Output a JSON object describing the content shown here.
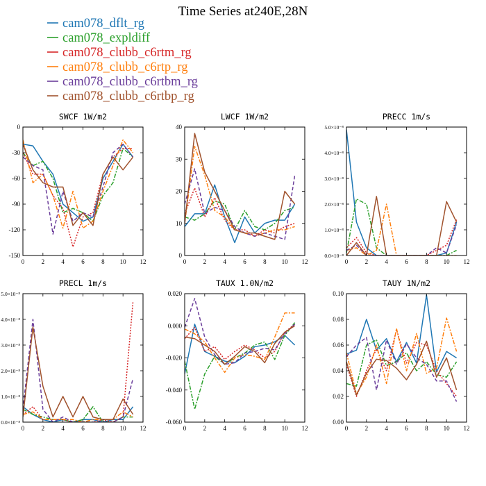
{
  "figure": {
    "title": "Time Series at240E,28N"
  },
  "legend": [
    {
      "name": "cam078_dflt_rg",
      "color": "#1f77b4",
      "dash": "solid"
    },
    {
      "name": "cam078_expldiff",
      "color": "#2ca02c",
      "dash": "dashdot"
    },
    {
      "name": "cam078_clubb_c6rtm_rg",
      "color": "#d62728",
      "dash": "dot"
    },
    {
      "name": "cam078_clubb_c6rtp_rg",
      "color": "#ff7f0e",
      "dash": "dashdot"
    },
    {
      "name": "cam078_clubb_c6rtbm_rg",
      "color": "#6a3d9a",
      "dash": "dash"
    },
    {
      "name": "cam078_clubb_c6rtbp_rg",
      "color": "#a0522d",
      "dash": "solid"
    }
  ],
  "chart_data": [
    {
      "type": "line",
      "title": "SWCF  1W/m2",
      "x": [
        0,
        1,
        2,
        3,
        4,
        5,
        6,
        7,
        8,
        9,
        10,
        11
      ],
      "xlim": [
        0,
        12
      ],
      "xticks": [
        0,
        2,
        4,
        6,
        8,
        10,
        12
      ],
      "ylim": [
        -150,
        0
      ],
      "yticks": [
        0,
        -30,
        -60,
        -90,
        -120,
        -150
      ],
      "ytick_labels": [
        "0",
        "-30",
        "-60",
        "-90",
        "-120",
        "-150"
      ],
      "series": [
        {
          "name": "cam078_dflt_rg",
          "values": [
            -20,
            -22,
            -40,
            -55,
            -90,
            -100,
            -110,
            -105,
            -60,
            -40,
            -20,
            -35
          ]
        },
        {
          "name": "cam078_expldiff",
          "values": [
            -30,
            -45,
            -40,
            -60,
            -100,
            -95,
            -100,
            -110,
            -80,
            -65,
            -25,
            -35
          ]
        },
        {
          "name": "cam078_clubb_c6rtm_rg",
          "values": [
            -30,
            -55,
            -55,
            -80,
            -95,
            -140,
            -105,
            -100,
            -55,
            -35,
            -25,
            -25
          ]
        },
        {
          "name": "cam078_clubb_c6rtp_rg",
          "values": [
            -15,
            -65,
            -55,
            -80,
            -118,
            -75,
            -118,
            -110,
            -75,
            -45,
            -15,
            -30
          ]
        },
        {
          "name": "cam078_clubb_c6rtbm_rg",
          "values": [
            -35,
            -45,
            -50,
            -125,
            -75,
            -110,
            -100,
            -105,
            -70,
            -30,
            -20,
            -35
          ]
        },
        {
          "name": "cam078_clubb_c6rtbp_rg",
          "values": [
            -20,
            -50,
            -65,
            -70,
            -70,
            -115,
            -100,
            -115,
            -55,
            -35,
            -50,
            -35
          ]
        }
      ]
    },
    {
      "type": "line",
      "title": "LWCF  1W/m2",
      "x": [
        0,
        1,
        2,
        3,
        4,
        5,
        6,
        7,
        8,
        9,
        10,
        11
      ],
      "xlim": [
        0,
        12
      ],
      "xticks": [
        0,
        2,
        4,
        6,
        8,
        10,
        12
      ],
      "ylim": [
        0,
        40
      ],
      "yticks": [
        0,
        10,
        20,
        30,
        40
      ],
      "ytick_labels": [
        "0",
        "10",
        "20",
        "30",
        "40"
      ],
      "series": [
        {
          "name": "cam078_dflt_rg",
          "values": [
            9,
            13,
            13,
            22,
            12,
            4,
            12,
            7,
            10,
            11,
            11,
            16
          ]
        },
        {
          "name": "cam078_expldiff",
          "values": [
            12,
            11,
            13,
            17,
            16,
            8,
            14,
            9,
            8,
            10,
            14,
            15
          ]
        },
        {
          "name": "cam078_clubb_c6rtm_rg",
          "values": [
            13,
            21,
            12,
            18,
            11,
            8,
            8,
            6,
            8,
            7,
            9,
            10
          ]
        },
        {
          "name": "cam078_clubb_c6rtp_rg",
          "values": [
            10,
            34,
            25,
            14,
            12,
            8,
            7,
            6,
            7,
            8,
            8,
            9
          ]
        },
        {
          "name": "cam078_clubb_c6rtbm_rg",
          "values": [
            16,
            27,
            13,
            15,
            14,
            9,
            7,
            6,
            7,
            6,
            5,
            25
          ]
        },
        {
          "name": "cam078_clubb_c6rtbp_rg",
          "values": [
            10,
            38,
            26,
            20,
            14,
            8,
            7,
            7,
            6,
            5,
            20,
            16
          ]
        }
      ]
    },
    {
      "type": "line",
      "title": "PRECC  1m/s",
      "x": [
        0,
        1,
        2,
        3,
        4,
        5,
        6,
        7,
        8,
        9,
        10,
        11
      ],
      "xlim": [
        0,
        12
      ],
      "xticks": [
        0,
        2,
        4,
        6,
        8,
        10,
        12
      ],
      "ylim": [
        0,
        5.0
      ],
      "yticks": [
        0,
        1,
        2,
        3,
        4,
        5
      ],
      "ytick_labels": [
        "0.0×10⁻⁸",
        "1.0×10⁻⁸",
        "2.0×10⁻⁸",
        "3.0×10⁻⁸",
        "4.0×10⁻⁸",
        "5.0×10⁻⁸"
      ],
      "series": [
        {
          "name": "cam078_dflt_rg",
          "values": [
            4.9,
            1.3,
            0.3,
            0.0,
            0.0,
            0.0,
            0.0,
            0.0,
            0.0,
            0.0,
            0.1,
            1.3
          ]
        },
        {
          "name": "cam078_expldiff",
          "values": [
            0.1,
            2.2,
            2.0,
            0.3,
            0.0,
            0.0,
            0.0,
            0.0,
            0.0,
            0.0,
            0.0,
            0.2
          ]
        },
        {
          "name": "cam078_clubb_c6rtm_rg",
          "values": [
            0.3,
            0.7,
            0.1,
            0.0,
            0.0,
            0.0,
            0.0,
            0.0,
            0.0,
            0.2,
            0.4,
            1.4
          ]
        },
        {
          "name": "cam078_clubb_c6rtp_rg",
          "values": [
            0.2,
            0.3,
            0.0,
            0.2,
            2.0,
            0.0,
            0.0,
            0.0,
            0.0,
            0.0,
            0.0,
            0.0
          ]
        },
        {
          "name": "cam078_clubb_c6rtbm_rg",
          "values": [
            0.2,
            0.4,
            0.0,
            0.0,
            0.0,
            0.0,
            0.0,
            0.0,
            0.0,
            0.3,
            0.1,
            1.2
          ]
        },
        {
          "name": "cam078_clubb_c6rtbp_rg",
          "values": [
            0.0,
            0.5,
            0.0,
            2.3,
            0.0,
            0.0,
            0.0,
            0.0,
            0.0,
            0.0,
            2.1,
            1.3
          ]
        }
      ]
    },
    {
      "type": "line",
      "title": "PRECL  1m/s",
      "x": [
        0,
        1,
        2,
        3,
        4,
        5,
        6,
        7,
        8,
        9,
        10,
        11
      ],
      "xlim": [
        0,
        12
      ],
      "xticks": [
        0,
        2,
        4,
        6,
        8,
        10,
        12
      ],
      "ylim": [
        0,
        5.0
      ],
      "yticks": [
        0,
        1,
        2,
        3,
        4,
        5
      ],
      "ytick_labels": [
        "0.0×10⁻⁸",
        "1.0×10⁻⁸",
        "2.0×10⁻⁸",
        "3.0×10⁻⁸",
        "4.0×10⁻⁸",
        "5.0×10⁻⁸"
      ],
      "series": [
        {
          "name": "cam078_dflt_rg",
          "values": [
            0.6,
            0.3,
            0.1,
            0.0,
            0.1,
            0.0,
            0.1,
            0.1,
            0.0,
            0.1,
            0.1,
            0.6
          ]
        },
        {
          "name": "cam078_expldiff",
          "values": [
            0.5,
            0.3,
            0.2,
            0.1,
            0.1,
            0.0,
            0.1,
            0.6,
            0.0,
            0.0,
            0.2,
            0.2
          ]
        },
        {
          "name": "cam078_clubb_c6rtm_rg",
          "values": [
            0.3,
            0.6,
            0.1,
            0.1,
            0.1,
            0.0,
            0.0,
            0.0,
            0.1,
            0.0,
            0.2,
            4.7
          ]
        },
        {
          "name": "cam078_clubb_c6rtp_rg",
          "values": [
            0.3,
            0.4,
            0.1,
            0.1,
            0.1,
            0.1,
            0.0,
            0.1,
            0.1,
            0.1,
            0.4,
            0.2
          ]
        },
        {
          "name": "cam078_clubb_c6rtbm_rg",
          "values": [
            0.5,
            4.0,
            0.5,
            0.0,
            0.2,
            0.0,
            0.0,
            0.0,
            0.0,
            0.0,
            0.2,
            1.7
          ]
        },
        {
          "name": "cam078_clubb_c6rtbp_rg",
          "values": [
            0.2,
            3.7,
            1.4,
            0.2,
            1.0,
            0.2,
            1.0,
            0.2,
            0.1,
            0.1,
            0.9,
            0.3
          ]
        }
      ]
    },
    {
      "type": "line",
      "title": "TAUX  1.0N/m2",
      "x": [
        0,
        1,
        2,
        3,
        4,
        5,
        6,
        7,
        8,
        9,
        10,
        11
      ],
      "xlim": [
        0,
        12
      ],
      "xticks": [
        0,
        2,
        4,
        6,
        8,
        10,
        12
      ],
      "ylim": [
        -0.06,
        0.02
      ],
      "yticks": [
        -0.06,
        -0.04,
        -0.02,
        0.0,
        0.02
      ],
      "ytick_labels": [
        "-0.060",
        "-0.040",
        "-0.020",
        "0.000",
        "0.020"
      ],
      "series": [
        {
          "name": "cam078_dflt_rg",
          "values": [
            -0.03,
            0.001,
            -0.016,
            -0.019,
            -0.022,
            -0.023,
            -0.019,
            -0.013,
            -0.012,
            -0.01,
            -0.006,
            -0.012
          ]
        },
        {
          "name": "cam078_expldiff",
          "values": [
            -0.022,
            -0.052,
            -0.03,
            -0.019,
            -0.024,
            -0.02,
            -0.017,
            -0.012,
            -0.01,
            -0.021,
            -0.006,
            0.002
          ]
        },
        {
          "name": "cam078_clubb_c6rtm_rg",
          "values": [
            -0.008,
            -0.001,
            -0.016,
            -0.013,
            -0.021,
            -0.016,
            -0.012,
            -0.015,
            -0.02,
            -0.016,
            -0.004,
            0.001
          ]
        },
        {
          "name": "cam078_clubb_c6rtp_rg",
          "values": [
            -0.002,
            -0.005,
            -0.01,
            -0.02,
            -0.029,
            -0.02,
            -0.018,
            -0.019,
            -0.021,
            -0.007,
            0.008,
            0.008
          ]
        },
        {
          "name": "cam078_clubb_c6rtbm_rg",
          "values": [
            -0.001,
            0.017,
            -0.007,
            -0.018,
            -0.024,
            -0.023,
            -0.017,
            -0.016,
            -0.014,
            -0.015,
            -0.005,
            0.001
          ]
        },
        {
          "name": "cam078_clubb_c6rtbp_rg",
          "values": [
            -0.007,
            -0.008,
            -0.012,
            -0.016,
            -0.024,
            -0.019,
            -0.013,
            -0.016,
            -0.023,
            -0.011,
            -0.004,
            0.0
          ]
        }
      ]
    },
    {
      "type": "line",
      "title": "TAUY  1N/m2",
      "x": [
        0,
        1,
        2,
        3,
        4,
        5,
        6,
        7,
        8,
        9,
        10,
        11
      ],
      "xlim": [
        0,
        12
      ],
      "xticks": [
        0,
        2,
        4,
        6,
        8,
        10,
        12
      ],
      "ylim": [
        0.0,
        0.1
      ],
      "yticks": [
        0.0,
        0.02,
        0.04,
        0.06,
        0.08,
        0.1
      ],
      "ytick_labels": [
        "0.00",
        "0.02",
        "0.04",
        "0.06",
        "0.08",
        "0.10"
      ],
      "series": [
        {
          "name": "cam078_dflt_rg",
          "values": [
            0.053,
            0.056,
            0.08,
            0.056,
            0.065,
            0.047,
            0.062,
            0.046,
            0.099,
            0.039,
            0.055,
            0.05
          ]
        },
        {
          "name": "cam078_expldiff",
          "values": [
            0.03,
            0.028,
            0.06,
            0.064,
            0.044,
            0.047,
            0.054,
            0.04,
            0.047,
            0.037,
            0.035,
            0.047
          ]
        },
        {
          "name": "cam078_clubb_c6rtm_rg",
          "values": [
            0.045,
            0.02,
            0.04,
            0.057,
            0.04,
            0.072,
            0.046,
            0.062,
            0.06,
            0.04,
            0.03,
            0.02
          ]
        },
        {
          "name": "cam078_clubb_c6rtp_rg",
          "values": [
            0.054,
            0.022,
            0.035,
            0.06,
            0.03,
            0.073,
            0.04,
            0.069,
            0.038,
            0.042,
            0.081,
            0.055
          ]
        },
        {
          "name": "cam078_clubb_c6rtbm_rg",
          "values": [
            0.051,
            0.06,
            0.066,
            0.025,
            0.064,
            0.045,
            0.061,
            0.05,
            0.045,
            0.032,
            0.032,
            0.016
          ]
        },
        {
          "name": "cam078_clubb_c6rtbp_rg",
          "values": [
            0.047,
            0.021,
            0.038,
            0.049,
            0.048,
            0.042,
            0.033,
            0.045,
            0.063,
            0.035,
            0.05,
            0.025
          ]
        }
      ]
    }
  ]
}
